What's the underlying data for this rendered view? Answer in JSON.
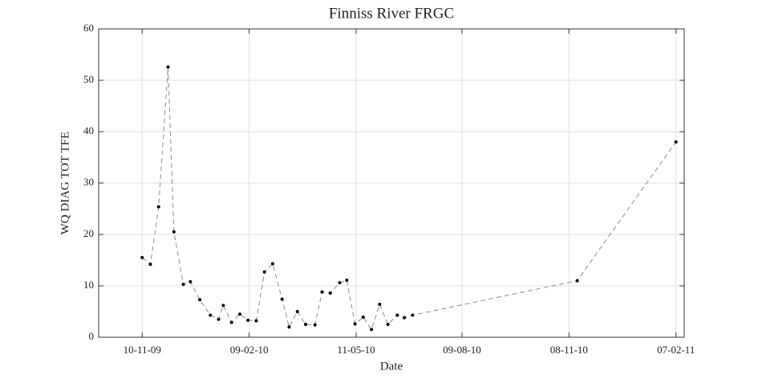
{
  "chart_data": {
    "type": "line",
    "title": "Finniss River FRGC",
    "x_label": "Date",
    "y_label": "WQ DIAG TOT TFE",
    "x": [
      "2009-11-10",
      "2009-11-17",
      "2009-11-24",
      "2009-12-02",
      "2009-12-07",
      "2009-12-15",
      "2009-12-21",
      "2009-12-29",
      "2010-01-07",
      "2010-01-14",
      "2010-01-18",
      "2010-01-25",
      "2010-02-01",
      "2010-02-08",
      "2010-02-15",
      "2010-02-22",
      "2010-03-01",
      "2010-03-09",
      "2010-03-15",
      "2010-03-22",
      "2010-03-29",
      "2010-04-06",
      "2010-04-12",
      "2010-04-19",
      "2010-04-27",
      "2010-05-03",
      "2010-05-10",
      "2010-05-17",
      "2010-05-24",
      "2010-05-31",
      "2010-06-07",
      "2010-06-15",
      "2010-06-21",
      "2010-06-28",
      "2010-11-15",
      "2011-02-07"
    ],
    "values": [
      15.5,
      14.2,
      25.4,
      52.6,
      20.5,
      10.3,
      10.8,
      7.3,
      4.3,
      3.5,
      6.2,
      2.9,
      4.5,
      3.3,
      3.2,
      12.7,
      14.3,
      7.4,
      2.0,
      5.0,
      2.5,
      2.4,
      8.8,
      8.6,
      10.6,
      11.1,
      2.6,
      3.9,
      1.5,
      6.4,
      2.5,
      4.3,
      3.8,
      4.3,
      11.0,
      38.0
    ],
    "color": "#8c8c8c",
    "line_style": "dashed",
    "marker_color": "#000000",
    "xlim": [
      "2009-10-04",
      "2011-02-14"
    ],
    "xticks": [
      {
        "value": "2009-11-10",
        "label": "10-11-09"
      },
      {
        "value": "2010-02-09",
        "label": "09-02-10"
      },
      {
        "value": "2010-05-11",
        "label": "11-05-10"
      },
      {
        "value": "2010-08-09",
        "label": "09-08-10"
      },
      {
        "value": "2010-11-08",
        "label": "08-11-10"
      },
      {
        "value": "2011-02-07",
        "label": "07-02-11"
      }
    ],
    "ylim": [
      0,
      60
    ],
    "yticks": [
      0,
      10,
      20,
      30,
      40,
      50,
      60
    ],
    "grid": true
  }
}
